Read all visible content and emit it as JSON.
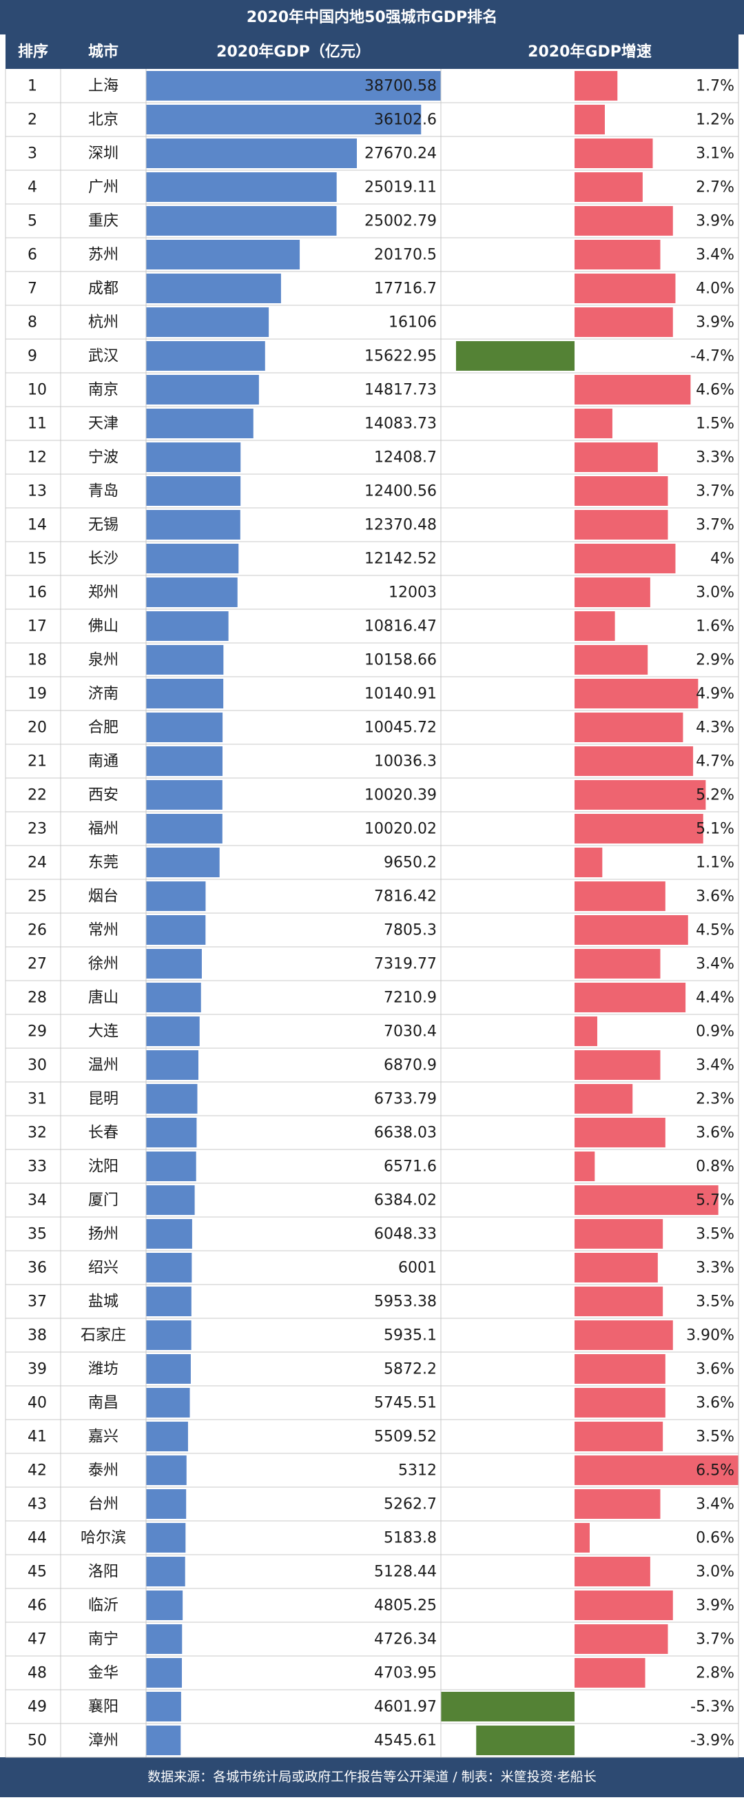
{
  "title": "2020年中国内地50强城市GDP排名",
  "columns": [
    "排序",
    "城市",
    "2020年GDP（亿元）",
    "2020年GDP增速"
  ],
  "colors": {
    "header": "#2d4a72",
    "gdp_bar": "#5b87c9",
    "growth_positive": "#ee6470",
    "growth_negative": "#548235"
  },
  "rows": [
    [
      1,
      "上海",
      38700.58,
      1.7,
      "1.7%"
    ],
    [
      2,
      "北京",
      36102.6,
      1.2,
      "1.2%"
    ],
    [
      3,
      "深圳",
      27670.24,
      3.1,
      "3.1%"
    ],
    [
      4,
      "广州",
      25019.11,
      2.7,
      "2.7%"
    ],
    [
      5,
      "重庆",
      25002.79,
      3.9,
      "3.9%"
    ],
    [
      6,
      "苏州",
      20170.5,
      3.4,
      "3.4%"
    ],
    [
      7,
      "成都",
      17716.7,
      4.0,
      "4.0%"
    ],
    [
      8,
      "杭州",
      16106,
      3.9,
      "3.9%"
    ],
    [
      9,
      "武汉",
      15622.95,
      -4.7,
      "-4.7%"
    ],
    [
      10,
      "南京",
      14817.73,
      4.6,
      "4.6%"
    ],
    [
      11,
      "天津",
      14083.73,
      1.5,
      "1.5%"
    ],
    [
      12,
      "宁波",
      12408.7,
      3.3,
      "3.3%"
    ],
    [
      13,
      "青岛",
      12400.56,
      3.7,
      "3.7%"
    ],
    [
      14,
      "无锡",
      12370.48,
      3.7,
      "3.7%"
    ],
    [
      15,
      "长沙",
      12142.52,
      4,
      "4%"
    ],
    [
      16,
      "郑州",
      12003,
      3.0,
      "3.0%"
    ],
    [
      17,
      "佛山",
      10816.47,
      1.6,
      "1.6%"
    ],
    [
      18,
      "泉州",
      10158.66,
      2.9,
      "2.9%"
    ],
    [
      19,
      "济南",
      10140.91,
      4.9,
      "4.9%"
    ],
    [
      20,
      "合肥",
      10045.72,
      4.3,
      "4.3%"
    ],
    [
      21,
      "南通",
      10036.3,
      4.7,
      "4.7%"
    ],
    [
      22,
      "西安",
      10020.39,
      5.2,
      "5.2%"
    ],
    [
      23,
      "福州",
      10020.02,
      5.1,
      "5.1%"
    ],
    [
      24,
      "东莞",
      9650.2,
      1.1,
      "1.1%"
    ],
    [
      25,
      "烟台",
      7816.42,
      3.6,
      "3.6%"
    ],
    [
      26,
      "常州",
      7805.3,
      4.5,
      "4.5%"
    ],
    [
      27,
      "徐州",
      7319.77,
      3.4,
      "3.4%"
    ],
    [
      28,
      "唐山",
      7210.9,
      4.4,
      "4.4%"
    ],
    [
      29,
      "大连",
      7030.4,
      0.9,
      "0.9%"
    ],
    [
      30,
      "温州",
      6870.9,
      3.4,
      "3.4%"
    ],
    [
      31,
      "昆明",
      6733.79,
      2.3,
      "2.3%"
    ],
    [
      32,
      "长春",
      6638.03,
      3.6,
      "3.6%"
    ],
    [
      33,
      "沈阳",
      6571.6,
      0.8,
      "0.8%"
    ],
    [
      34,
      "厦门",
      6384.02,
      5.7,
      "5.7%"
    ],
    [
      35,
      "扬州",
      6048.33,
      3.5,
      "3.5%"
    ],
    [
      36,
      "绍兴",
      6001,
      3.3,
      "3.3%"
    ],
    [
      37,
      "盐城",
      5953.38,
      3.5,
      "3.5%"
    ],
    [
      38,
      "石家庄",
      5935.1,
      3.9,
      "3.90%"
    ],
    [
      39,
      "潍坊",
      5872.2,
      3.6,
      "3.6%"
    ],
    [
      40,
      "南昌",
      5745.51,
      3.6,
      "3.6%"
    ],
    [
      41,
      "嘉兴",
      5509.52,
      3.5,
      "3.5%"
    ],
    [
      42,
      "泰州",
      5312,
      6.5,
      "6.5%"
    ],
    [
      43,
      "台州",
      5262.7,
      3.4,
      "3.4%"
    ],
    [
      44,
      "哈尔滨",
      5183.8,
      0.6,
      "0.6%"
    ],
    [
      45,
      "洛阳",
      5128.44,
      3.0,
      "3.0%"
    ],
    [
      46,
      "临沂",
      4805.25,
      3.9,
      "3.9%"
    ],
    [
      47,
      "南宁",
      4726.34,
      3.7,
      "3.7%"
    ],
    [
      48,
      "金华",
      4703.95,
      2.8,
      "2.8%"
    ],
    [
      49,
      "襄阳",
      4601.97,
      -5.3,
      "-5.3%"
    ],
    [
      50,
      "漳州",
      4545.61,
      -3.9,
      "-3.9%"
    ]
  ],
  "footer": "数据来源：各城市统计局或政府工作报告等公开渠道 / 制表：米筐投资·老船长"
}
